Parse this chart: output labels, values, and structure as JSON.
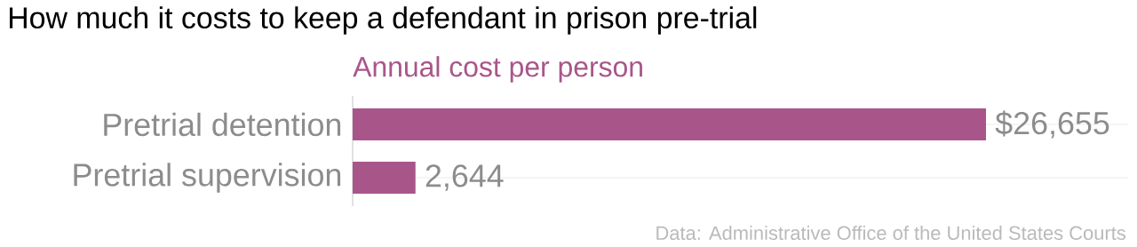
{
  "chart_data": {
    "type": "bar",
    "orientation": "horizontal",
    "title": "How much it costs to keep a defendant in prison pre-trial",
    "subtitle": "Annual cost per person",
    "categories": [
      "Pretrial detention",
      "Pretrial supervision"
    ],
    "values": [
      26655,
      2644
    ],
    "value_labels": [
      "$26,655",
      "2,644"
    ],
    "color": "#a8568a",
    "grid": "y",
    "annotations": [
      "Data: Administrative Office of the United States Courts"
    ]
  }
}
